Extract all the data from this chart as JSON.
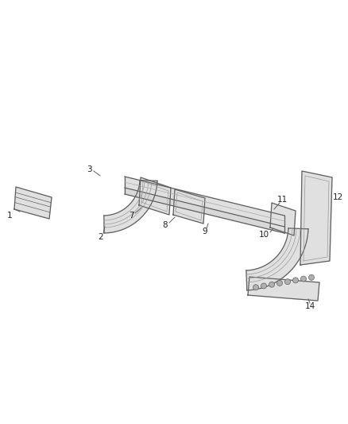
{
  "background_color": "#ffffff",
  "fig_width": 4.38,
  "fig_height": 5.33,
  "dpi": 100,
  "line_color": "#606060",
  "line_width": 0.9,
  "label_color": "#222222",
  "label_fontsize": 7.5
}
